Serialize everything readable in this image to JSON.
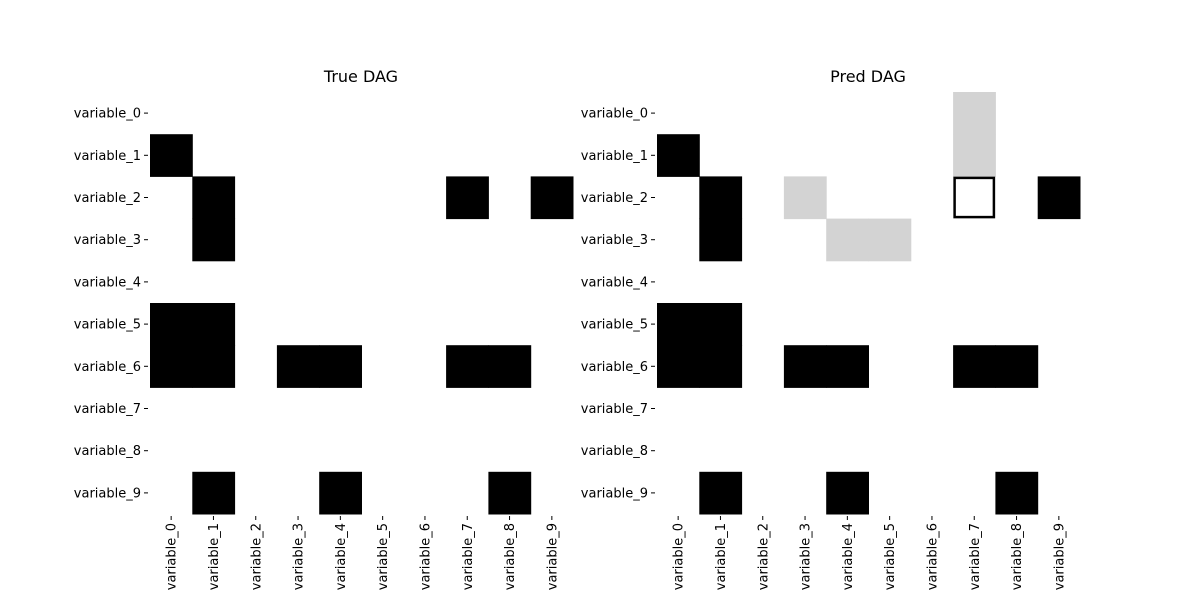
{
  "chart_data": [
    {
      "type": "heatmap",
      "title": "True DAG",
      "row_labels": [
        "variable_0",
        "variable_1",
        "variable_2",
        "variable_3",
        "variable_4",
        "variable_5",
        "variable_6",
        "variable_7",
        "variable_8",
        "variable_9"
      ],
      "col_labels": [
        "variable_0",
        "variable_1",
        "variable_2",
        "variable_3",
        "variable_4",
        "variable_5",
        "variable_6",
        "variable_7",
        "variable_8",
        "variable_9"
      ],
      "matrix": [
        [
          0,
          0,
          0,
          0,
          0,
          0,
          0,
          0,
          0,
          0
        ],
        [
          1,
          0,
          0,
          0,
          0,
          0,
          0,
          0,
          0,
          0
        ],
        [
          0,
          1,
          0,
          0,
          0,
          0,
          0,
          1,
          0,
          1
        ],
        [
          0,
          1,
          0,
          0,
          0,
          0,
          0,
          0,
          0,
          0
        ],
        [
          0,
          0,
          0,
          0,
          0,
          0,
          0,
          0,
          0,
          0
        ],
        [
          1,
          1,
          0,
          0,
          0,
          0,
          0,
          0,
          0,
          0
        ],
        [
          1,
          1,
          0,
          1,
          1,
          0,
          0,
          1,
          1,
          0
        ],
        [
          0,
          0,
          0,
          0,
          0,
          0,
          0,
          0,
          0,
          0
        ],
        [
          0,
          0,
          0,
          0,
          0,
          0,
          0,
          0,
          0,
          0
        ],
        [
          0,
          1,
          0,
          0,
          1,
          0,
          0,
          0,
          1,
          0
        ]
      ]
    },
    {
      "type": "heatmap",
      "title": "Pred DAG",
      "row_labels": [
        "variable_0",
        "variable_1",
        "variable_2",
        "variable_3",
        "variable_4",
        "variable_5",
        "variable_6",
        "variable_7",
        "variable_8",
        "variable_9"
      ],
      "col_labels": [
        "variable_0",
        "variable_1",
        "variable_2",
        "variable_3",
        "variable_4",
        "variable_5",
        "variable_6",
        "variable_7",
        "variable_8",
        "variable_9"
      ],
      "matrix": [
        [
          0,
          0,
          0,
          0,
          0,
          0,
          0,
          0.2,
          0,
          0
        ],
        [
          1,
          0,
          0,
          0,
          0,
          0,
          0,
          0.2,
          0,
          0
        ],
        [
          0,
          1,
          0,
          0.2,
          0,
          0,
          0,
          0,
          0,
          1
        ],
        [
          0,
          1,
          0,
          0,
          0.2,
          0.2,
          0,
          0,
          0,
          0
        ],
        [
          0,
          0,
          0,
          0,
          0,
          0,
          0,
          0,
          0,
          0
        ],
        [
          1,
          1,
          0,
          0,
          0,
          0,
          0,
          0,
          0,
          0
        ],
        [
          1,
          1,
          0,
          1,
          1,
          0,
          0,
          1,
          1,
          0
        ],
        [
          0,
          0,
          0,
          0,
          0,
          0,
          0,
          0,
          0,
          0
        ],
        [
          0,
          0,
          0,
          0,
          0,
          0,
          0,
          0,
          0,
          0
        ],
        [
          0,
          1,
          0,
          0,
          1,
          0,
          0,
          0,
          1,
          0
        ]
      ],
      "outlined_cells": [
        [
          2,
          7
        ]
      ]
    }
  ],
  "colors": {
    "edge": "#000000",
    "partial": "#d3d3d3",
    "empty": "#ffffff"
  }
}
